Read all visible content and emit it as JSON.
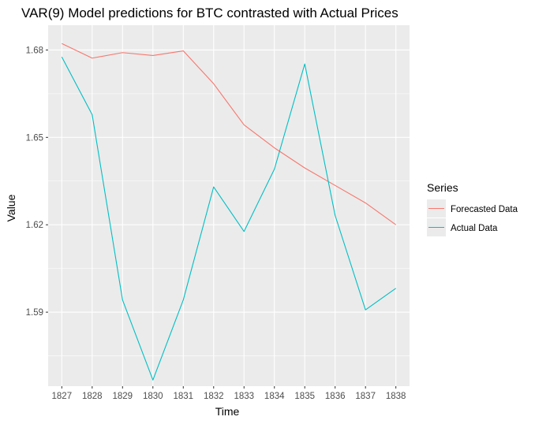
{
  "chart_data": {
    "type": "line",
    "title": "VAR(9) Model predictions for BTC contrasted with Actual Prices",
    "xlabel": "Time",
    "ylabel": "Value",
    "x": [
      1827,
      1828,
      1829,
      1830,
      1831,
      1832,
      1833,
      1834,
      1835,
      1836,
      1837,
      1838
    ],
    "x_tick_labels": [
      "1827",
      "1828",
      "1829",
      "1830",
      "1831",
      "1832",
      "1833",
      "1834",
      "1835",
      "1836",
      "1837",
      "1838"
    ],
    "y_ticks": [
      1.59,
      1.62,
      1.65,
      1.68
    ],
    "y_tick_labels": [
      "1.59",
      "1.62",
      "1.65",
      "1.68"
    ],
    "xlim": [
      1826.55,
      1838.45
    ],
    "ylim": [
      1.5646,
      1.6885
    ],
    "grid": true,
    "legend": {
      "title": "Series",
      "position": "right"
    },
    "series": [
      {
        "name": "Forecasted Data",
        "color": "#F8766D",
        "values": [
          1.6822,
          1.6772,
          1.6791,
          1.6781,
          1.6797,
          1.6684,
          1.6543,
          1.6464,
          1.6395,
          1.6335,
          1.6275,
          1.62
        ]
      },
      {
        "name": "Actual Data",
        "color": "#00BFC4",
        "values": [
          1.6776,
          1.6578,
          1.5942,
          1.5667,
          1.5942,
          1.633,
          1.6177,
          1.6391,
          1.6752,
          1.6232,
          1.5908,
          1.5982
        ]
      }
    ]
  }
}
